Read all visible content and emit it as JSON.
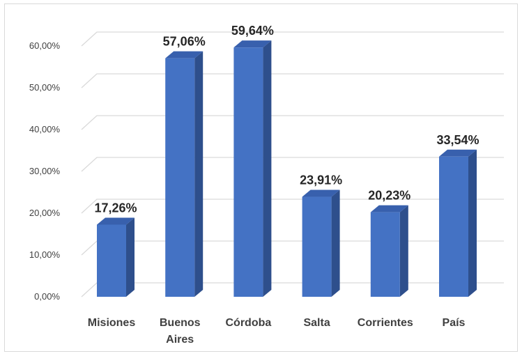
{
  "chart_data": {
    "type": "bar",
    "title": "",
    "xlabel": "",
    "ylabel": "",
    "categories": [
      "Misiones",
      "Buenos Aires",
      "Córdoba",
      "Salta",
      "Corrientes",
      "País"
    ],
    "category_lines": [
      [
        "Misiones"
      ],
      [
        "Buenos",
        "Aires"
      ],
      [
        "Córdoba"
      ],
      [
        "Salta"
      ],
      [
        "Corrientes"
      ],
      [
        "País"
      ]
    ],
    "values": [
      17.26,
      57.06,
      59.64,
      23.91,
      20.23,
      33.54
    ],
    "data_labels": [
      "17,26%",
      "57,06%",
      "59,64%",
      "23,91%",
      "20,23%",
      "33,54%"
    ],
    "ylim": [
      0,
      60
    ],
    "yticks": [
      0,
      10,
      20,
      30,
      40,
      50,
      60
    ],
    "ytick_labels": [
      "0,00%",
      "10,00%",
      "20,00%",
      "30,00%",
      "40,00%",
      "50,00%",
      "60,00%"
    ],
    "grid": true,
    "legend": "none",
    "style": "3d-column",
    "colors": {
      "front": "#4472c4",
      "side": "#2e4f8c",
      "top": "#3860ad",
      "grid": "#d9d9d9"
    }
  }
}
